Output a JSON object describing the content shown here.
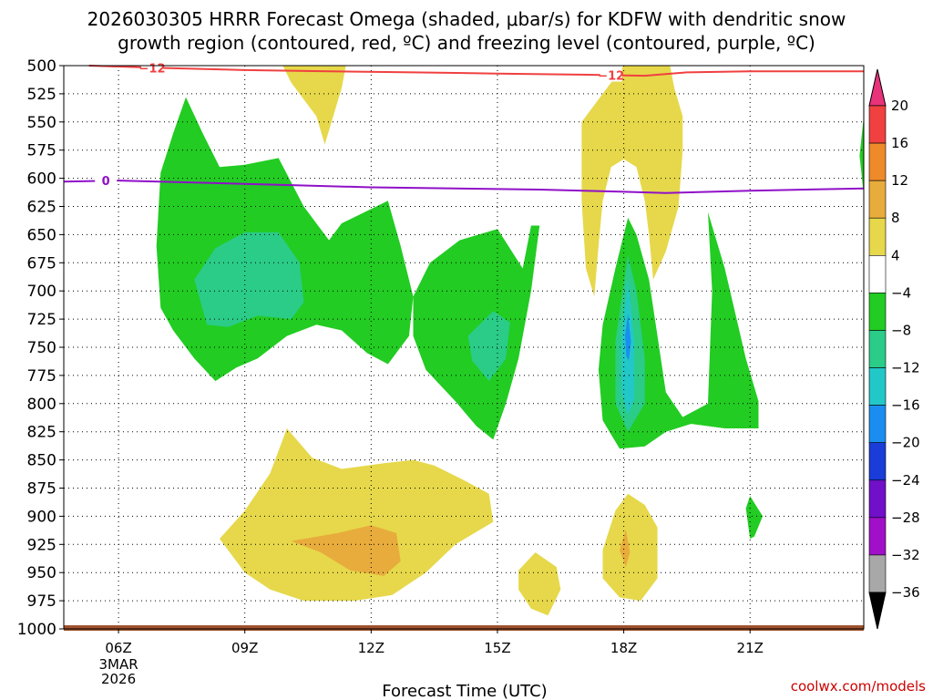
{
  "chart_data": {
    "type": "contour",
    "title_lines": [
      "2026030305 HRRR Forecast Omega (shaded, μbar/s) for KDFW with dendritic snow",
      "growth region (contoured, red, ºC) and freezing level (contoured, purple, ºC)"
    ],
    "xlabel": "Forecast Time (UTC)",
    "credit": "coolwx.com/models",
    "y_ticks": [
      500,
      525,
      550,
      575,
      600,
      625,
      650,
      675,
      700,
      725,
      750,
      775,
      800,
      825,
      850,
      875,
      900,
      925,
      950,
      975,
      1000
    ],
    "ylim": [
      500,
      1000
    ],
    "x_range_hours": [
      4.7,
      23.7
    ],
    "x_ticks": [
      {
        "hour": 6,
        "label": "06Z",
        "sub": [
          "3MAR",
          "2026"
        ]
      },
      {
        "hour": 9,
        "label": "09Z"
      },
      {
        "hour": 12,
        "label": "12Z"
      },
      {
        "hour": 15,
        "label": "15Z"
      },
      {
        "hour": 18,
        "label": "18Z"
      },
      {
        "hour": 21,
        "label": "21Z"
      }
    ],
    "colorbar": {
      "levels": [
        "20",
        "16",
        "12",
        "8",
        "4",
        "−4",
        "−8",
        "−12",
        "−16",
        "−20",
        "−24",
        "−28",
        "−32",
        "−36"
      ],
      "colors": [
        "#e8327a",
        "#f04040",
        "#ee8a2a",
        "#e8ac3c",
        "#e6d84a",
        "#ffffff",
        "#22cc22",
        "#2acc88",
        "#22c8c8",
        "#1a8ef0",
        "#1a3cd8",
        "#7010c8",
        "#a010c8",
        "#a8a8a8",
        "#000000"
      ]
    },
    "contours": [
      {
        "name": "dendritic-snow -12C",
        "color": "#f04040",
        "label": "−12",
        "points": [
          [
            5.3,
            500
          ],
          [
            7,
            502
          ],
          [
            9,
            504
          ],
          [
            11,
            505
          ],
          [
            13,
            506
          ],
          [
            15,
            507
          ],
          [
            17,
            508
          ],
          [
            18.5,
            509
          ],
          [
            19.5,
            506
          ],
          [
            21,
            505
          ],
          [
            23.7,
            505
          ]
        ]
      },
      {
        "name": "freezing level 0C",
        "color": "#9010c8",
        "label": "0",
        "points": [
          [
            4.7,
            603
          ],
          [
            6,
            602
          ],
          [
            8,
            604
          ],
          [
            10,
            606
          ],
          [
            12,
            608
          ],
          [
            14,
            609
          ],
          [
            16,
            610
          ],
          [
            18,
            612
          ],
          [
            19,
            613
          ],
          [
            21,
            611
          ],
          [
            23.7,
            609
          ]
        ]
      }
    ],
    "shaded_regions": [
      {
        "value": "4 to 8",
        "color": "#e6d84a",
        "points": [
          [
            9.9,
            500
          ],
          [
            11.4,
            500
          ],
          [
            11.3,
            520
          ],
          [
            11.1,
            545
          ],
          [
            10.9,
            570
          ],
          [
            10.7,
            545
          ],
          [
            10.1,
            515
          ]
        ]
      },
      {
        "value": "4 to 8",
        "color": "#e6d84a",
        "points": [
          [
            18,
            500
          ],
          [
            19.1,
            500
          ],
          [
            19.2,
            520
          ],
          [
            19.4,
            545
          ],
          [
            19.4,
            575
          ],
          [
            19.3,
            625
          ],
          [
            19.0,
            665
          ],
          [
            18.7,
            690
          ],
          [
            18.6,
            650
          ],
          [
            18.5,
            620
          ],
          [
            18.3,
            590
          ],
          [
            18,
            583
          ],
          [
            17.7,
            590
          ],
          [
            17.5,
            620
          ],
          [
            17.4,
            660
          ],
          [
            17.3,
            705
          ],
          [
            17.1,
            680
          ],
          [
            17.0,
            620
          ],
          [
            17.0,
            550
          ],
          [
            17.5,
            525
          ]
        ]
      },
      {
        "value": "-4 to -8",
        "color": "#22cc22",
        "points": [
          [
            7.0,
            595
          ],
          [
            7.3,
            560
          ],
          [
            7.6,
            528
          ],
          [
            8.0,
            560
          ],
          [
            8.4,
            590
          ],
          [
            9.0,
            588
          ],
          [
            9.8,
            582
          ],
          [
            10.4,
            625
          ],
          [
            11.0,
            655
          ],
          [
            11.3,
            640
          ],
          [
            12.4,
            620
          ],
          [
            12.7,
            660
          ],
          [
            13.0,
            705
          ],
          [
            12.9,
            740
          ],
          [
            12.4,
            765
          ],
          [
            11.9,
            755
          ],
          [
            11.3,
            735
          ],
          [
            10.7,
            730
          ],
          [
            10.0,
            740
          ],
          [
            9.3,
            760
          ],
          [
            8.8,
            768
          ],
          [
            8.3,
            780
          ],
          [
            7.8,
            760
          ],
          [
            7.3,
            735
          ],
          [
            7.0,
            715
          ],
          [
            6.9,
            660
          ]
        ]
      },
      {
        "value": "-8 to -12",
        "color": "#2acc88",
        "points": [
          [
            7.8,
            690
          ],
          [
            8.3,
            662
          ],
          [
            9.0,
            648
          ],
          [
            9.8,
            648
          ],
          [
            10.3,
            675
          ],
          [
            10.4,
            710
          ],
          [
            10.1,
            725
          ],
          [
            9.3,
            722
          ],
          [
            8.6,
            732
          ],
          [
            8.1,
            730
          ]
        ]
      },
      {
        "value": "-4 to -8",
        "color": "#22cc22",
        "points": [
          [
            13.0,
            705
          ],
          [
            13.4,
            675
          ],
          [
            14.1,
            655
          ],
          [
            15.0,
            645
          ],
          [
            15.6,
            680
          ],
          [
            15.8,
            642
          ],
          [
            16.0,
            642
          ],
          [
            15.8,
            700
          ],
          [
            15.5,
            760
          ],
          [
            15.2,
            800
          ],
          [
            14.9,
            832
          ],
          [
            14.5,
            820
          ],
          [
            14.0,
            798
          ],
          [
            13.3,
            770
          ],
          [
            13.0,
            740
          ]
        ]
      },
      {
        "value": "-8 to -12",
        "color": "#2acc88",
        "points": [
          [
            14.3,
            740
          ],
          [
            14.9,
            718
          ],
          [
            15.3,
            728
          ],
          [
            15.2,
            760
          ],
          [
            14.8,
            780
          ],
          [
            14.4,
            762
          ]
        ]
      },
      {
        "value": "-4 to -8",
        "color": "#22cc22",
        "points": [
          [
            17.5,
            730
          ],
          [
            17.8,
            680
          ],
          [
            18.1,
            635
          ],
          [
            18.3,
            650
          ],
          [
            18.6,
            690
          ],
          [
            18.8,
            740
          ],
          [
            19.0,
            790
          ],
          [
            19.4,
            812
          ],
          [
            20.0,
            800
          ],
          [
            20.1,
            700
          ],
          [
            20.0,
            630
          ],
          [
            20.4,
            680
          ],
          [
            20.9,
            760
          ],
          [
            21.2,
            798
          ],
          [
            21.2,
            822
          ],
          [
            20.4,
            822
          ],
          [
            19.6,
            818
          ],
          [
            19.0,
            825
          ],
          [
            18.5,
            838
          ],
          [
            17.9,
            840
          ],
          [
            17.5,
            815
          ],
          [
            17.4,
            770
          ]
        ]
      },
      {
        "value": "-8 to -12",
        "color": "#2acc88",
        "points": [
          [
            17.8,
            745
          ],
          [
            18.1,
            668
          ],
          [
            18.3,
            700
          ],
          [
            18.5,
            760
          ],
          [
            18.5,
            800
          ],
          [
            18.1,
            825
          ],
          [
            17.8,
            800
          ]
        ]
      },
      {
        "value": "-12 to -16",
        "color": "#22c8c8",
        "points": [
          [
            17.95,
            740
          ],
          [
            18.1,
            690
          ],
          [
            18.25,
            745
          ],
          [
            18.25,
            795
          ],
          [
            18.1,
            810
          ],
          [
            17.95,
            790
          ]
        ]
      },
      {
        "value": "-16 to -20",
        "color": "#1a8ef0",
        "points": [
          [
            18.03,
            740
          ],
          [
            18.1,
            720
          ],
          [
            18.17,
            745
          ],
          [
            18.12,
            762
          ],
          [
            18.06,
            758
          ]
        ]
      },
      {
        "value": "-4 to -8",
        "color": "#22cc22",
        "points": [
          [
            23.7,
            545
          ],
          [
            23.7,
            615
          ],
          [
            23.6,
            580
          ]
        ]
      },
      {
        "value": "-4 to -8",
        "color": "#22cc22",
        "points": [
          [
            20.9,
            893
          ],
          [
            21.0,
            882
          ],
          [
            21.3,
            900
          ],
          [
            21.1,
            918
          ],
          [
            21.0,
            920
          ]
        ]
      },
      {
        "value": "4 to 8",
        "color": "#e6d84a",
        "points": [
          [
            8.4,
            920
          ],
          [
            9.0,
            895
          ],
          [
            9.6,
            862
          ],
          [
            10.0,
            822
          ],
          [
            10.6,
            848
          ],
          [
            11.3,
            858
          ],
          [
            12.3,
            853
          ],
          [
            13.0,
            850
          ],
          [
            13.5,
            855
          ],
          [
            14.2,
            868
          ],
          [
            14.8,
            880
          ],
          [
            14.9,
            905
          ],
          [
            14.0,
            925
          ],
          [
            13.3,
            950
          ],
          [
            12.5,
            970
          ],
          [
            11.6,
            975
          ],
          [
            10.4,
            975
          ],
          [
            9.6,
            965
          ],
          [
            9.0,
            950
          ]
        ]
      },
      {
        "value": "8 to 12",
        "color": "#e8ac3c",
        "points": [
          [
            10.1,
            922
          ],
          [
            11.2,
            915
          ],
          [
            12.0,
            908
          ],
          [
            12.6,
            915
          ],
          [
            12.7,
            940
          ],
          [
            12.3,
            953
          ],
          [
            11.5,
            948
          ],
          [
            10.8,
            932
          ]
        ]
      },
      {
        "value": "4 to 8",
        "color": "#e6d84a",
        "points": [
          [
            15.5,
            948
          ],
          [
            15.9,
            932
          ],
          [
            16.4,
            945
          ],
          [
            16.5,
            965
          ],
          [
            16.2,
            988
          ],
          [
            15.8,
            982
          ],
          [
            15.5,
            965
          ]
        ]
      },
      {
        "value": "4 to 8",
        "color": "#e6d84a",
        "points": [
          [
            17.5,
            930
          ],
          [
            17.8,
            895
          ],
          [
            18.1,
            880
          ],
          [
            18.5,
            890
          ],
          [
            18.8,
            910
          ],
          [
            18.8,
            955
          ],
          [
            18.4,
            975
          ],
          [
            17.9,
            972
          ],
          [
            17.5,
            955
          ]
        ]
      },
      {
        "value": "8 to 12",
        "color": "#e8ac3c",
        "points": [
          [
            17.9,
            930
          ],
          [
            18.05,
            912
          ],
          [
            18.15,
            932
          ],
          [
            18.05,
            945
          ]
        ]
      }
    ]
  }
}
